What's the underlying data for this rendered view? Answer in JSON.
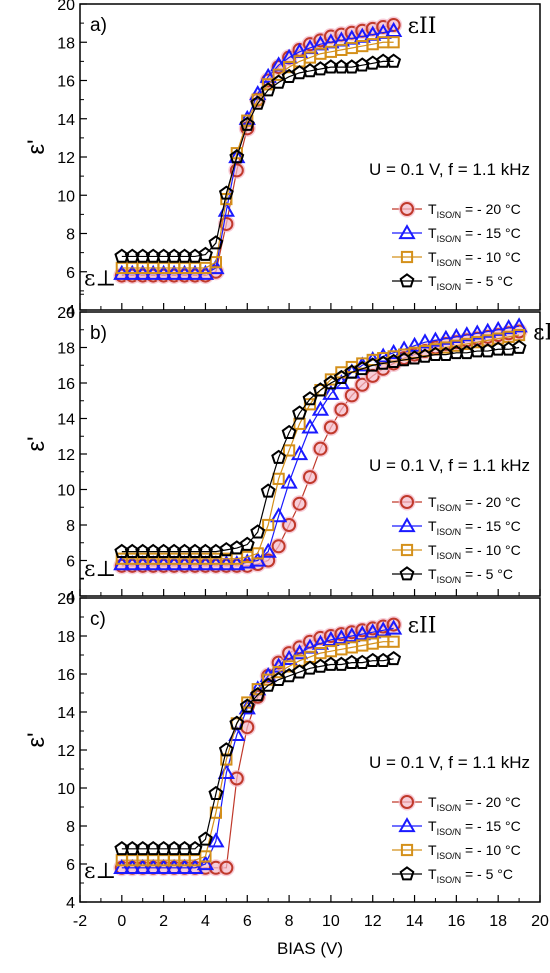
{
  "chart_data": [
    {
      "type": "line",
      "panel_label": "a)",
      "ylabel": "ε'",
      "ylim": [
        4,
        20
      ],
      "yticks": [
        "4",
        "6",
        "8",
        "10",
        "12",
        "14",
        "16",
        "18",
        "20"
      ],
      "condition_text": "U = 0.1 V, f = 1.1 kHz",
      "perp_label": "ε⊥",
      "parallel_label": "εII",
      "x": [
        0,
        0.5,
        1,
        1.5,
        2,
        2.5,
        3,
        3.5,
        4,
        4.5,
        5,
        5.5,
        6,
        6.5,
        7,
        7.5,
        8,
        8.5,
        9,
        9.5,
        10,
        10.5,
        11,
        11.5,
        12,
        12.5,
        13
      ],
      "series": [
        {
          "name": "T_ISO/N = - 20 °C",
          "marker": "circle",
          "color": "#c0392b",
          "values": [
            5.8,
            5.8,
            5.8,
            5.8,
            5.8,
            5.8,
            5.8,
            5.8,
            5.8,
            6.0,
            8.5,
            11.3,
            13.5,
            15.0,
            16.0,
            16.7,
            17.2,
            17.6,
            17.9,
            18.1,
            18.3,
            18.4,
            18.5,
            18.6,
            18.7,
            18.8,
            18.9
          ]
        },
        {
          "name": "T_ISO/N = - 15 °C",
          "marker": "triangle",
          "color": "#1a1aff",
          "values": [
            5.9,
            5.9,
            5.9,
            5.9,
            5.9,
            5.9,
            5.9,
            5.9,
            5.9,
            6.2,
            9.2,
            12.0,
            14.0,
            15.3,
            16.2,
            16.8,
            17.2,
            17.5,
            17.7,
            17.9,
            18.0,
            18.1,
            18.2,
            18.3,
            18.4,
            18.5,
            18.6
          ]
        },
        {
          "name": "T_ISO/N = - 10 °C",
          "marker": "square",
          "color": "#d4901a",
          "values": [
            6.2,
            6.2,
            6.2,
            6.2,
            6.2,
            6.2,
            6.2,
            6.2,
            6.2,
            6.5,
            9.8,
            12.2,
            13.9,
            15.0,
            15.8,
            16.3,
            16.7,
            17.0,
            17.2,
            17.4,
            17.5,
            17.6,
            17.7,
            17.8,
            17.9,
            18.0,
            18.0
          ]
        },
        {
          "name": "T_ISO/N = - 5 °C",
          "marker": "pentagon",
          "color": "#000000",
          "values": [
            6.8,
            6.8,
            6.8,
            6.8,
            6.8,
            6.8,
            6.8,
            6.8,
            6.9,
            7.5,
            10.1,
            12.0,
            13.7,
            14.8,
            15.5,
            15.9,
            16.2,
            16.4,
            16.5,
            16.6,
            16.7,
            16.7,
            16.7,
            16.8,
            16.9,
            17.0,
            17.0
          ]
        }
      ]
    },
    {
      "type": "line",
      "panel_label": "b)",
      "ylabel": "ε'",
      "ylim": [
        4,
        20
      ],
      "yticks": [
        "4",
        "6",
        "8",
        "10",
        "12",
        "14",
        "16",
        "18",
        "20"
      ],
      "condition_text": "U = 0.1 V, f = 1.1 kHz",
      "perp_label": "ε⊥",
      "parallel_label": "εII",
      "x": [
        0,
        0.5,
        1,
        1.5,
        2,
        2.5,
        3,
        3.5,
        4,
        4.5,
        5,
        5.5,
        6,
        6.5,
        7,
        7.5,
        8,
        8.5,
        9,
        9.5,
        10,
        10.5,
        11,
        11.5,
        12,
        12.5,
        13,
        13.5,
        14,
        14.5,
        15,
        15.5,
        16,
        16.5,
        17,
        17.5,
        18,
        18.5,
        19
      ],
      "series": [
        {
          "name": "T_ISO/N = - 20 °C",
          "marker": "circle",
          "color": "#c0392b",
          "values": [
            5.7,
            5.7,
            5.7,
            5.7,
            5.7,
            5.7,
            5.7,
            5.7,
            5.7,
            5.7,
            5.7,
            5.7,
            5.7,
            5.8,
            6.0,
            6.8,
            8.0,
            9.2,
            10.7,
            12.3,
            13.5,
            14.5,
            15.3,
            15.9,
            16.4,
            16.8,
            17.1,
            17.4,
            17.6,
            17.8,
            18.0,
            18.2,
            18.3,
            18.4,
            18.5,
            18.6,
            18.7,
            18.8,
            18.9
          ]
        },
        {
          "name": "T_ISO/N = - 15 °C",
          "marker": "triangle",
          "color": "#1a1aff",
          "values": [
            5.8,
            5.8,
            5.8,
            5.8,
            5.8,
            5.8,
            5.8,
            5.8,
            5.8,
            5.8,
            5.8,
            5.8,
            5.9,
            6.0,
            6.5,
            8.5,
            10.4,
            12.0,
            13.5,
            14.5,
            15.4,
            16.0,
            16.6,
            17.0,
            17.3,
            17.5,
            17.7,
            17.9,
            18.1,
            18.3,
            18.4,
            18.5,
            18.6,
            18.7,
            18.8,
            18.9,
            19.0,
            19.1,
            19.2
          ]
        },
        {
          "name": "T_ISO/N = - 10 °C",
          "marker": "square",
          "color": "#d4901a",
          "values": [
            6.1,
            6.1,
            6.1,
            6.1,
            6.1,
            6.1,
            6.1,
            6.1,
            6.1,
            6.1,
            6.1,
            6.1,
            6.2,
            6.4,
            8.0,
            10.6,
            12.2,
            13.7,
            14.8,
            15.6,
            16.2,
            16.6,
            16.9,
            17.1,
            17.3,
            17.4,
            17.5,
            17.6,
            17.7,
            17.8,
            17.9,
            18.0,
            18.1,
            18.2,
            18.3,
            18.4,
            18.5,
            18.6,
            18.7
          ]
        },
        {
          "name": "T_ISO/N = - 5 °C",
          "marker": "pentagon",
          "color": "#000000",
          "values": [
            6.5,
            6.5,
            6.5,
            6.5,
            6.5,
            6.5,
            6.5,
            6.5,
            6.5,
            6.5,
            6.6,
            6.7,
            6.9,
            7.6,
            9.9,
            11.8,
            13.2,
            14.3,
            15.1,
            15.6,
            16.0,
            16.3,
            16.6,
            16.8,
            17.0,
            17.1,
            17.2,
            17.3,
            17.4,
            17.5,
            17.6,
            17.6,
            17.7,
            17.7,
            17.8,
            17.8,
            17.9,
            17.9,
            18.0
          ]
        }
      ]
    },
    {
      "type": "line",
      "panel_label": "c)",
      "ylabel": "ε'",
      "ylim": [
        4,
        20
      ],
      "yticks": [
        "4",
        "6",
        "8",
        "10",
        "12",
        "14",
        "16",
        "18",
        "20"
      ],
      "condition_text": "U = 0.1 V, f = 1.1 kHz",
      "perp_label": "ε⊥",
      "parallel_label": "εII",
      "x": [
        0,
        0.5,
        1,
        1.5,
        2,
        2.5,
        3,
        3.5,
        4,
        4.5,
        5,
        5.5,
        6,
        6.5,
        7,
        7.5,
        8,
        8.5,
        9,
        9.5,
        10,
        10.5,
        11,
        11.5,
        12,
        12.5,
        13
      ],
      "series": [
        {
          "name": "T_ISO/N = - 20 °C",
          "marker": "circle",
          "color": "#c0392b",
          "values": [
            5.8,
            5.8,
            5.8,
            5.8,
            5.8,
            5.8,
            5.8,
            5.8,
            5.8,
            5.8,
            5.8,
            10.5,
            13.2,
            14.8,
            15.9,
            16.6,
            17.1,
            17.4,
            17.7,
            17.9,
            18.0,
            18.1,
            18.2,
            18.3,
            18.4,
            18.5,
            18.6
          ]
        },
        {
          "name": "T_ISO/N = - 15 °C",
          "marker": "triangle",
          "color": "#1a1aff",
          "values": [
            5.8,
            5.8,
            5.8,
            5.8,
            5.8,
            5.8,
            5.8,
            5.8,
            6.0,
            7.2,
            10.8,
            12.8,
            14.2,
            15.2,
            15.9,
            16.4,
            16.8,
            17.1,
            17.4,
            17.6,
            17.8,
            17.9,
            18.0,
            18.1,
            18.2,
            18.3,
            18.4
          ]
        },
        {
          "name": "T_ISO/N = - 10 °C",
          "marker": "square",
          "color": "#d4901a",
          "values": [
            6.2,
            6.2,
            6.2,
            6.2,
            6.2,
            6.2,
            6.2,
            6.2,
            6.4,
            8.7,
            11.5,
            13.4,
            14.5,
            15.2,
            15.7,
            16.1,
            16.4,
            16.7,
            16.9,
            17.1,
            17.2,
            17.3,
            17.4,
            17.5,
            17.6,
            17.7,
            17.7
          ]
        },
        {
          "name": "T_ISO/N = - 5 °C",
          "marker": "pentagon",
          "color": "#000000",
          "values": [
            6.8,
            6.8,
            6.8,
            6.8,
            6.8,
            6.8,
            6.8,
            6.8,
            7.3,
            9.7,
            12.0,
            13.4,
            14.3,
            14.9,
            15.4,
            15.7,
            15.9,
            16.1,
            16.3,
            16.4,
            16.5,
            16.5,
            16.6,
            16.6,
            16.7,
            16.7,
            16.8
          ]
        }
      ]
    }
  ],
  "x_axis": {
    "label": "BIAS (V)",
    "xlim": [
      -2,
      20
    ],
    "ticks": [
      "-2",
      "0",
      "2",
      "4",
      "6",
      "8",
      "10",
      "12",
      "14",
      "16",
      "18",
      "20"
    ]
  },
  "legend_entries": [
    {
      "prefix": "T",
      "subscript": "ISO/N",
      "suffix": " = - 20 °C"
    },
    {
      "prefix": "T",
      "subscript": "ISO/N",
      "suffix": " = - 15 °C"
    },
    {
      "prefix": "T",
      "subscript": "ISO/N",
      "suffix": " = - 10 °C"
    },
    {
      "prefix": "T",
      "subscript": "ISO/N",
      "suffix": " = - 5 °C"
    }
  ],
  "colors": {
    "circle": "#c0392b",
    "triangle": "#1a1aff",
    "square": "#d4901a",
    "pentagon": "#000000",
    "circle_halo": "#f4b8c8"
  }
}
